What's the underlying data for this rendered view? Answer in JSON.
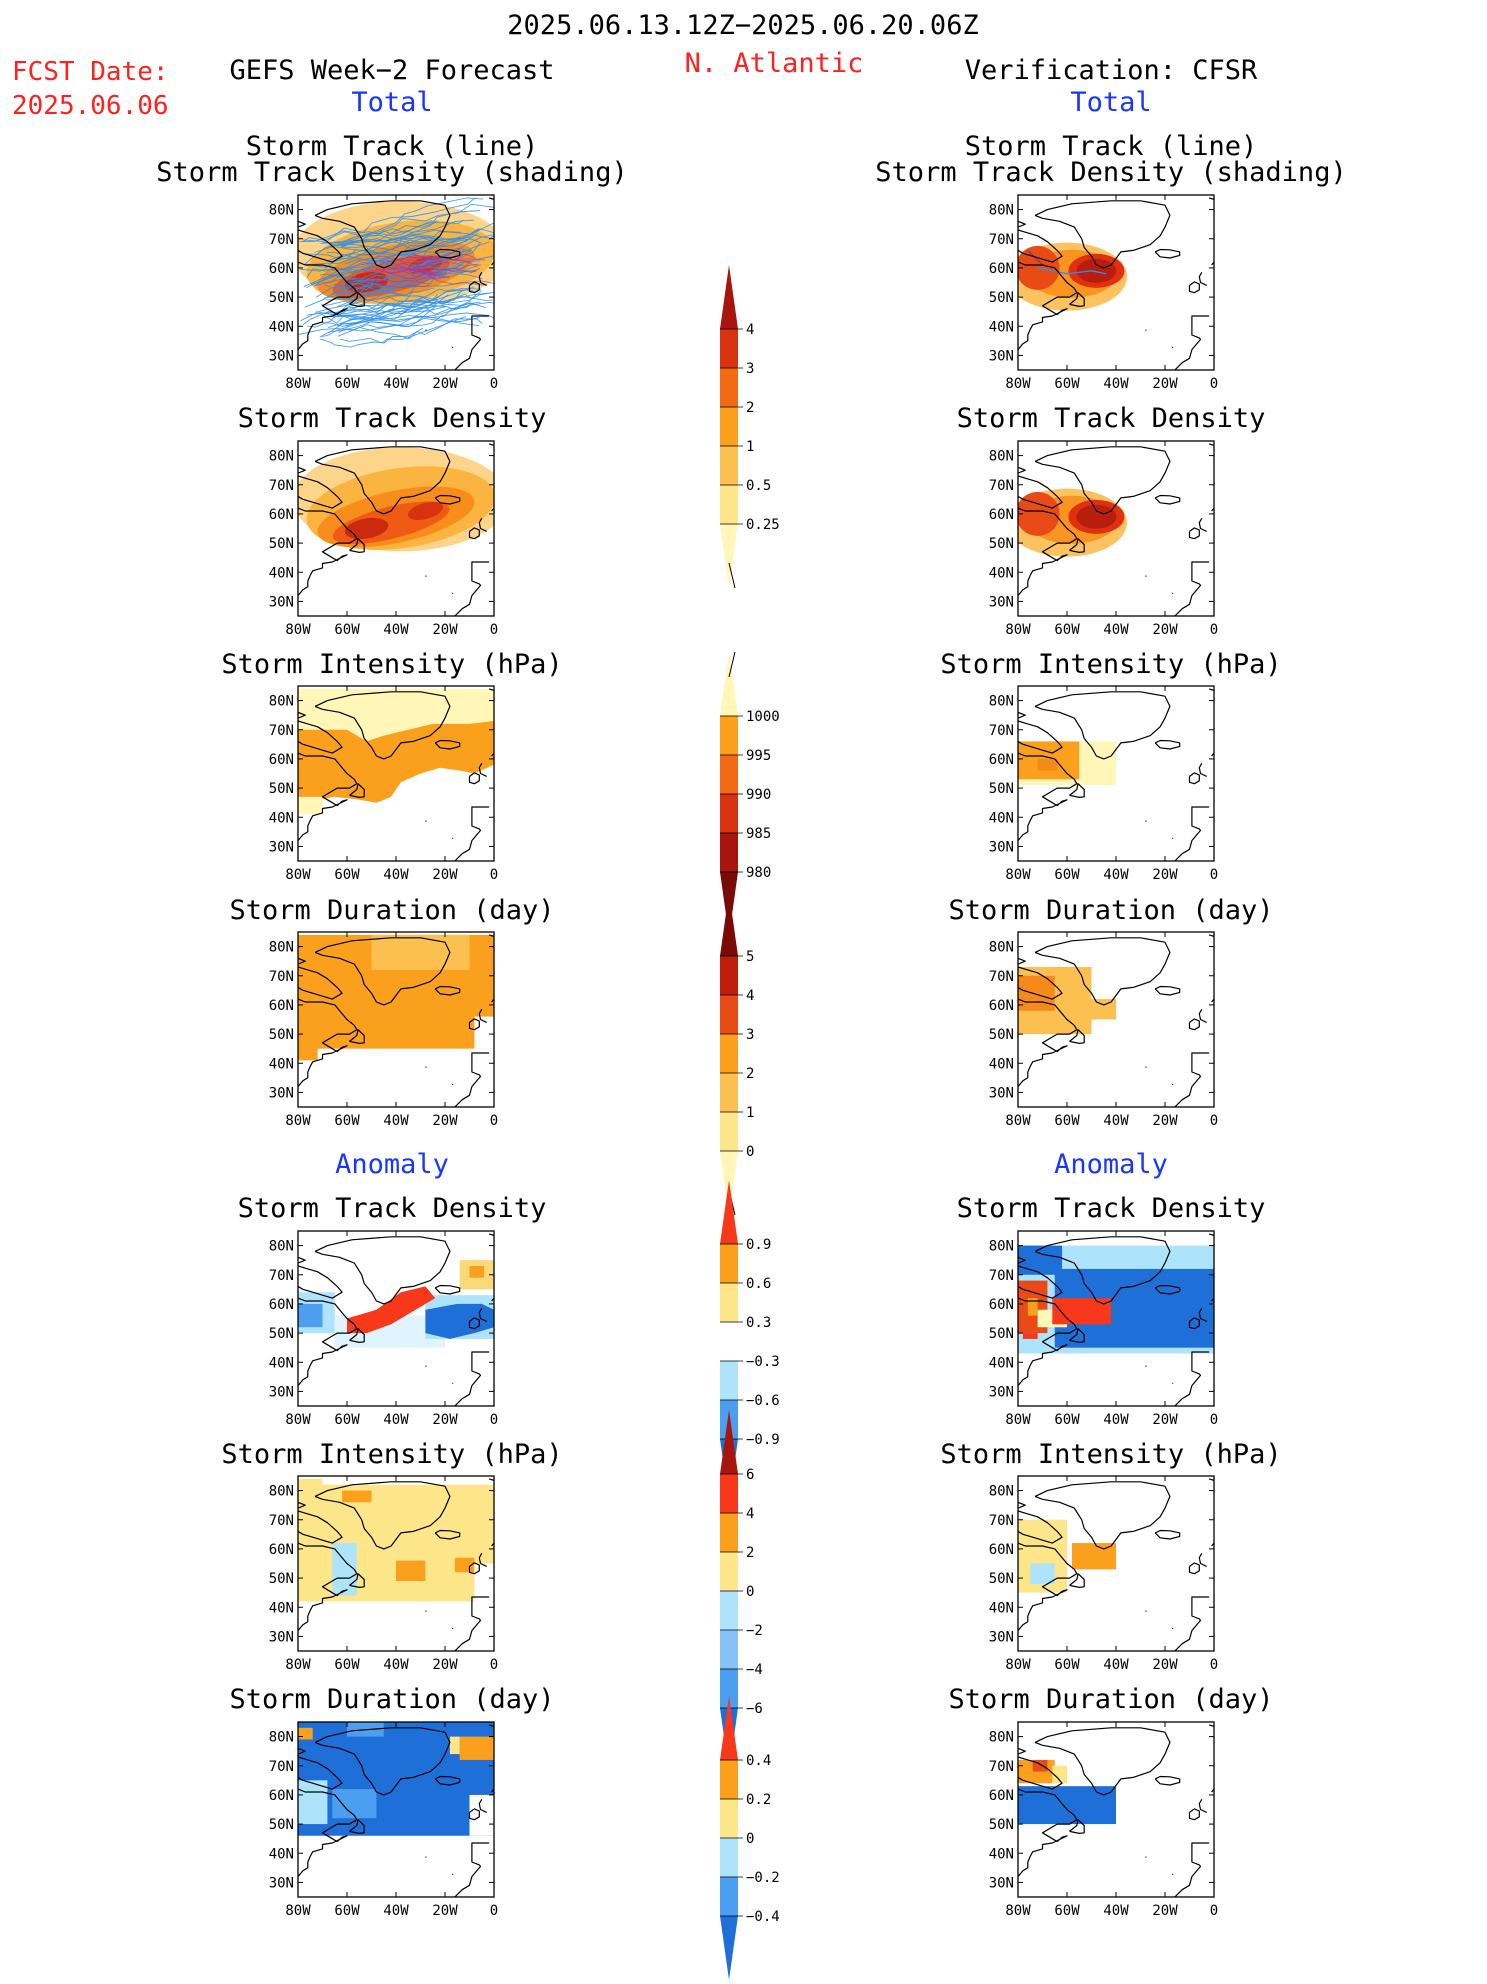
{
  "header": {
    "period": "2025.06.13.12Z−2025.06.20.06Z",
    "region": "N. Atlantic",
    "fcst_label": "FCST Date:",
    "fcst_date": "2025.06.06",
    "left_title": "GEFS Week−2 Forecast",
    "right_title": "Verification: CFSR",
    "total_label": "Total",
    "anomaly_label": "Anomaly"
  },
  "titles": {
    "track_line": "Storm Track (line)",
    "track_shading": "Storm Track Density (shading)",
    "track_density": "Storm Track Density",
    "intensity": "Storm Intensity (hPa)",
    "duration": "Storm Duration (day)"
  },
  "axes": {
    "lat": [
      "80N",
      "70N",
      "60N",
      "50N",
      "40N",
      "30N"
    ],
    "lon": [
      "80W",
      "60W",
      "40W",
      "20W",
      "0"
    ]
  },
  "colorbars": {
    "density": [
      "4",
      "3",
      "2",
      "1",
      "0.5",
      "0.25"
    ],
    "intensity": [
      "1000",
      "995",
      "990",
      "985",
      "980"
    ],
    "duration": [
      "5",
      "4",
      "3",
      "2",
      "1",
      "0"
    ],
    "density_anom": [
      "0.9",
      "0.6",
      "0.3",
      "−0.3",
      "−0.6",
      "−0.9"
    ],
    "intensity_anom": [
      "6",
      "4",
      "2",
      "0",
      "−2",
      "−4",
      "−6"
    ],
    "duration_anom": [
      "0.4",
      "0.2",
      "0",
      "−0.2",
      "−0.4"
    ]
  },
  "colors": {
    "title_red": "#ff2020",
    "title_blue": "#1a35ff",
    "track_line": "#2a8ff0"
  }
}
